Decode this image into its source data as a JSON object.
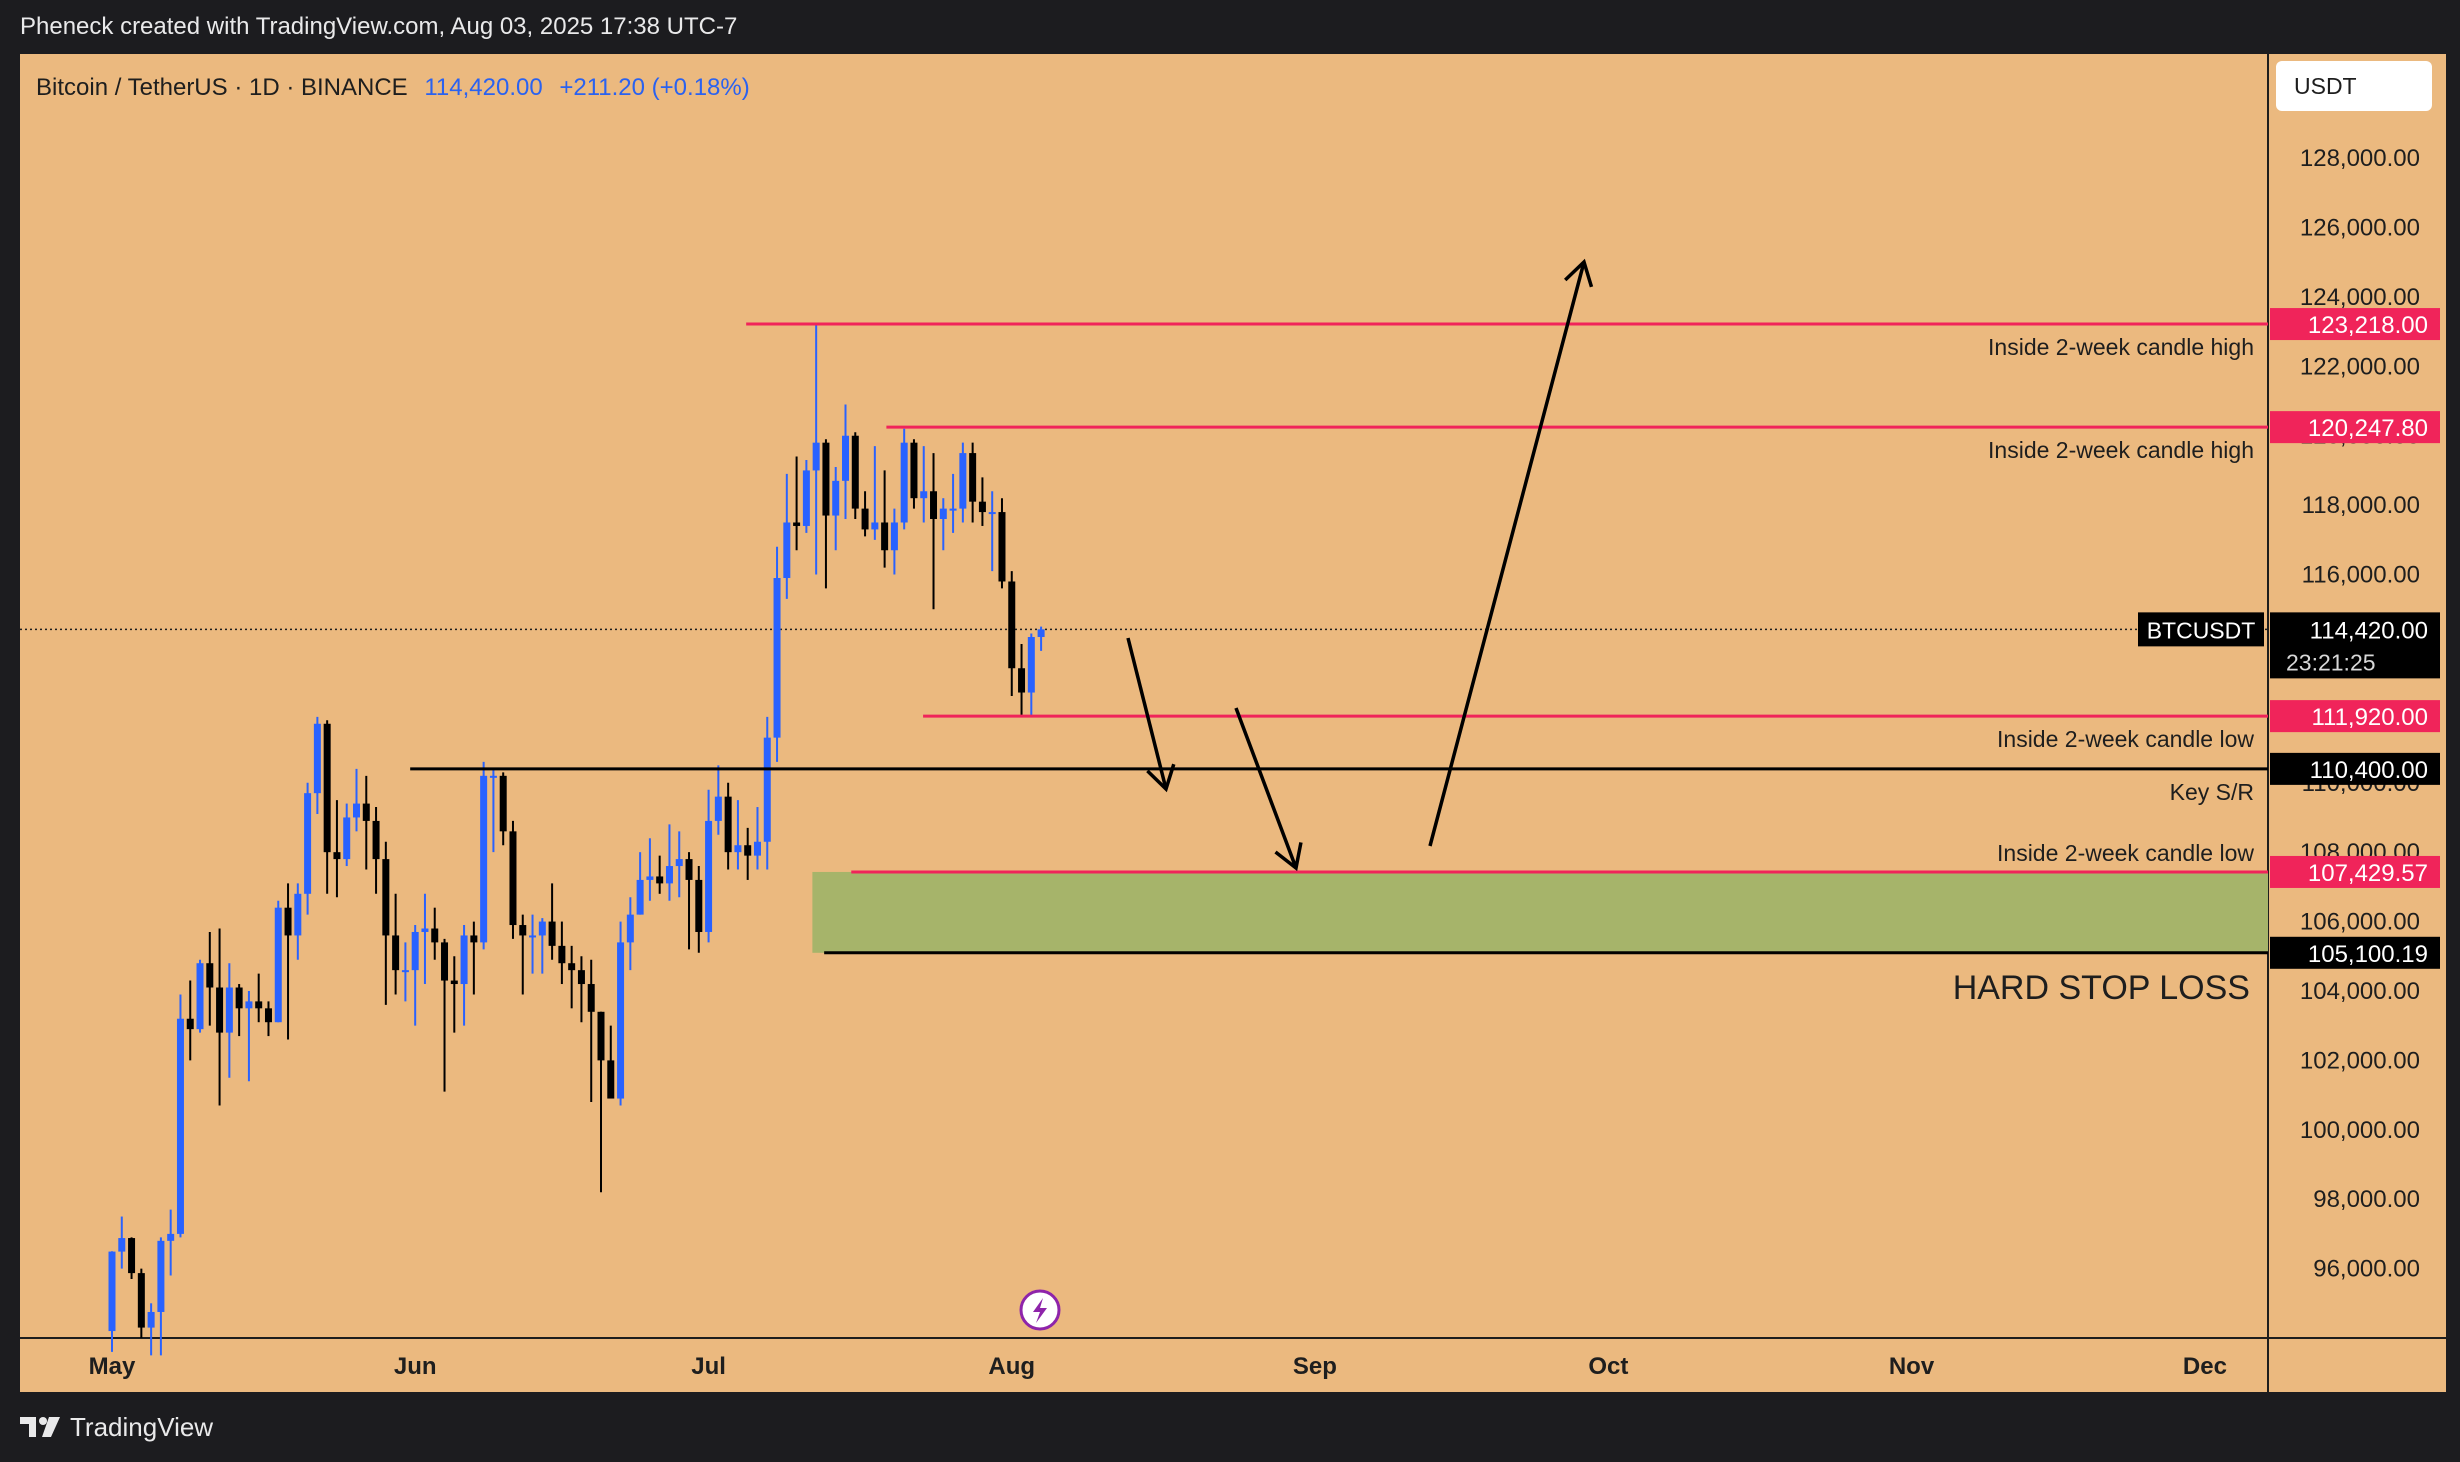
{
  "header": {
    "caption": "Pheneck created with TradingView.com, Aug 03, 2025 17:38 UTC-7"
  },
  "legend": {
    "symbol": "Bitcoin / TetherUS · 1D · BINANCE",
    "price": "114,420.00",
    "change": "+211.20 (+0.18%)"
  },
  "currency_button": "USDT",
  "footer": {
    "brand": "TradingView"
  },
  "colors": {
    "background": "#ebb97f",
    "bull_candle": "#2962ff",
    "bear_candle": "#000000",
    "level_red": "#f0245a",
    "level_black": "#000000",
    "zone_green": "#a6b46a"
  },
  "chart_data": {
    "type": "candlestick",
    "title": "Bitcoin / TetherUS · 1D · BINANCE",
    "ylim": [
      94000,
      131000
    ],
    "y_ticks": [
      "128,000.00",
      "126,000.00",
      "124,000.00",
      "122,000.00",
      "120,000.00",
      "118,000.00",
      "116,000.00",
      "114,000.00",
      "112,000.00",
      "110,000.00",
      "108,000.00",
      "106,000.00",
      "104,000.00",
      "102,000.00",
      "100,000.00",
      "98,000.00",
      "96,000.00"
    ],
    "y_tick_values": [
      128000,
      126000,
      124000,
      122000,
      120000,
      118000,
      116000,
      114000,
      112000,
      110000,
      108000,
      106000,
      104000,
      102000,
      100000,
      98000,
      96000
    ],
    "x_ticks": [
      "May",
      "Jun",
      "Jul",
      "Aug",
      "Sep",
      "Oct",
      "Nov",
      "Dec"
    ],
    "x_tick_day_index": [
      0,
      31,
      61,
      92,
      123,
      153,
      184,
      214
    ],
    "ohlc_start": "2025-05-01",
    "ohlc": [
      [
        94200,
        96500,
        93600,
        96490
      ],
      [
        96490,
        97500,
        96000,
        96880
      ],
      [
        96880,
        96900,
        95700,
        95870
      ],
      [
        95870,
        96000,
        94000,
        94300
      ],
      [
        94300,
        95000,
        93500,
        94750
      ],
      [
        94750,
        96900,
        93500,
        96800
      ],
      [
        96800,
        97700,
        95800,
        97000
      ],
      [
        97000,
        103900,
        96900,
        103200
      ],
      [
        103200,
        104300,
        102000,
        102900
      ],
      [
        102900,
        104900,
        102800,
        104800
      ],
      [
        104800,
        105700,
        103000,
        104100
      ],
      [
        104100,
        105800,
        100700,
        102800
      ],
      [
        102800,
        104800,
        101500,
        104100
      ],
      [
        104100,
        104200,
        102700,
        103500
      ],
      [
        103500,
        104000,
        101400,
        103700
      ],
      [
        103700,
        104500,
        103100,
        103500
      ],
      [
        103500,
        103700,
        102700,
        103100
      ],
      [
        103100,
        106600,
        103100,
        106400
      ],
      [
        106400,
        107100,
        102600,
        105600
      ],
      [
        105600,
        107100,
        104900,
        106800
      ],
      [
        106800,
        110000,
        106200,
        109700
      ],
      [
        109700,
        111900,
        109100,
        111700
      ],
      [
        111700,
        111800,
        106800,
        108000
      ],
      [
        108000,
        109500,
        106700,
        107800
      ],
      [
        107800,
        109400,
        107600,
        109000
      ],
      [
        109000,
        110400,
        108600,
        109400
      ],
      [
        109400,
        110200,
        107500,
        108900
      ],
      [
        108900,
        109300,
        106800,
        107800
      ],
      [
        107800,
        108300,
        103600,
        105600
      ],
      [
        105600,
        106800,
        103900,
        104600
      ],
      [
        104600,
        105400,
        103700,
        104600
      ],
      [
        104600,
        105900,
        103000,
        105700
      ],
      [
        105700,
        106800,
        104200,
        105800
      ],
      [
        105800,
        106400,
        104900,
        105400
      ],
      [
        105400,
        105500,
        101100,
        104300
      ],
      [
        104300,
        105000,
        102800,
        104200
      ],
      [
        104200,
        105900,
        103000,
        105600
      ],
      [
        105600,
        106000,
        103900,
        105400
      ],
      [
        105400,
        110600,
        105200,
        110200
      ],
      [
        110200,
        110400,
        108000,
        110200
      ],
      [
        110200,
        110300,
        108200,
        108600
      ],
      [
        108600,
        108900,
        105500,
        105900
      ],
      [
        105900,
        106200,
        103900,
        105600
      ],
      [
        105600,
        106200,
        104500,
        105600
      ],
      [
        105600,
        106100,
        104500,
        106000
      ],
      [
        106000,
        107100,
        104900,
        105300
      ],
      [
        105300,
        106000,
        104200,
        104800
      ],
      [
        104800,
        105300,
        103500,
        104600
      ],
      [
        104600,
        105000,
        103100,
        104200
      ],
      [
        104200,
        104900,
        100800,
        103400
      ],
      [
        103400,
        103400,
        98200,
        102000
      ],
      [
        102000,
        103000,
        100900,
        100900
      ],
      [
        100900,
        106000,
        100700,
        105400
      ],
      [
        105400,
        106700,
        104600,
        106200
      ],
      [
        106200,
        108000,
        106200,
        107200
      ],
      [
        107200,
        108400,
        106600,
        107300
      ],
      [
        107300,
        107900,
        106800,
        107100
      ],
      [
        107100,
        108800,
        106600,
        107600
      ],
      [
        107600,
        108600,
        106700,
        107800
      ],
      [
        107800,
        108000,
        105200,
        107200
      ],
      [
        107200,
        107600,
        105100,
        105700
      ],
      [
        105700,
        109800,
        105400,
        108900
      ],
      [
        108900,
        110500,
        108500,
        109600
      ],
      [
        109600,
        110000,
        107500,
        108000
      ],
      [
        108000,
        109500,
        107500,
        108200
      ],
      [
        108200,
        108700,
        107200,
        107900
      ],
      [
        107900,
        109300,
        107500,
        108300
      ],
      [
        108300,
        111900,
        107500,
        111300
      ],
      [
        111300,
        116800,
        110600,
        115900
      ],
      [
        115900,
        118900,
        115300,
        117500
      ],
      [
        117500,
        119400,
        116700,
        117400
      ],
      [
        117400,
        119300,
        117200,
        119000
      ],
      [
        119000,
        123200,
        116000,
        119800
      ],
      [
        119800,
        119900,
        115600,
        117700
      ],
      [
        117700,
        119100,
        116700,
        118700
      ],
      [
        118700,
        120900,
        117600,
        120000
      ],
      [
        120000,
        120100,
        117600,
        117900
      ],
      [
        117900,
        118400,
        117100,
        117300
      ],
      [
        117300,
        119700,
        117000,
        117500
      ],
      [
        117500,
        119000,
        116200,
        116700
      ],
      [
        116700,
        117900,
        116000,
        117500
      ],
      [
        117500,
        120200,
        117300,
        119800
      ],
      [
        119800,
        119900,
        117900,
        118200
      ],
      [
        118200,
        119700,
        117500,
        118400
      ],
      [
        118400,
        119500,
        115000,
        117600
      ],
      [
        117600,
        118200,
        116700,
        117900
      ],
      [
        117900,
        118900,
        117200,
        117900
      ],
      [
        117900,
        119800,
        117500,
        119500
      ],
      [
        119500,
        119800,
        117500,
        118100
      ],
      [
        118100,
        118800,
        117400,
        117800
      ],
      [
        117800,
        118400,
        116100,
        117800
      ],
      [
        117800,
        118200,
        115600,
        115800
      ],
      [
        115800,
        116100,
        112500,
        113300
      ],
      [
        113300,
        114000,
        111900,
        112600
      ],
      [
        112600,
        114300,
        111900,
        114200
      ],
      [
        114200,
        114500,
        113800,
        114420
      ]
    ],
    "levels": [
      {
        "price": 123218.0,
        "label": "123,218.00",
        "note": "Inside 2-week candle high",
        "color": "#f0245a"
      },
      {
        "price": 120247.8,
        "label": "120,247.80",
        "note": "Inside 2-week candle high",
        "color": "#f0245a"
      },
      {
        "price": 111920.0,
        "label": "111,920.00",
        "note": "Inside 2-week candle low",
        "color": "#f0245a"
      },
      {
        "price": 110400.0,
        "label": "110,400.00",
        "note": "Key S/R",
        "color": "#000000"
      },
      {
        "price": 107429.57,
        "label": "107,429.57",
        "note": "Inside 2-week candle low",
        "color": "#f0245a"
      },
      {
        "price": 105100.19,
        "label": "105,100.19",
        "note": "HARD STOP LOSS",
        "color": "#000000"
      }
    ],
    "zone": {
      "top": 107429.57,
      "bottom": 105100.19
    },
    "last_price": {
      "symbol": "BTCUSDT",
      "price": "114,420.00",
      "countdown": "23:21:25"
    }
  }
}
